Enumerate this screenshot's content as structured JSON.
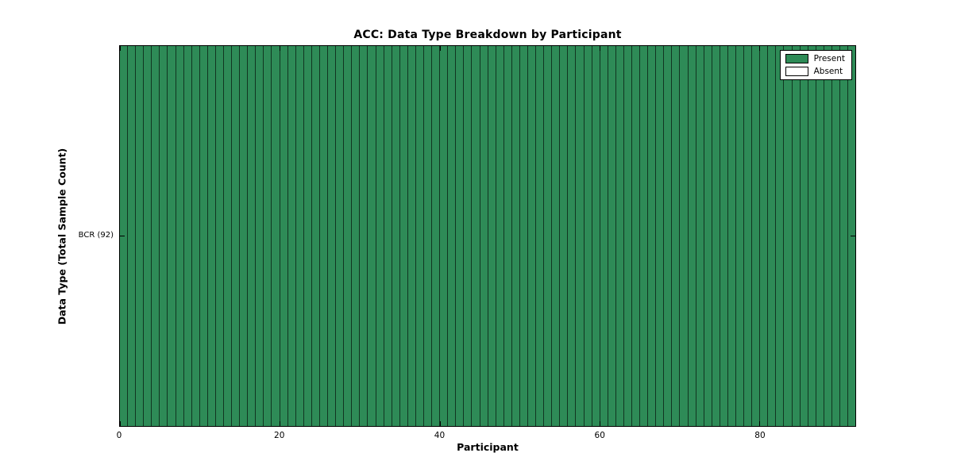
{
  "title": "ACC: Data Type Breakdown by Participant",
  "xlabel": "Participant",
  "ylabel": "Data Type (Total Sample Count)",
  "ytick_label": "BCR (92)",
  "legend": [
    {
      "label": "Present",
      "color": "#2E8B57"
    },
    {
      "label": "Absent",
      "color": "#FFFFFF"
    }
  ],
  "chart_data": {
    "type": "heatmap",
    "title": "ACC: Data Type Breakdown by Participant",
    "xlabel": "Participant",
    "ylabel": "Data Type (Total Sample Count)",
    "rows": [
      "BCR (92)"
    ],
    "n_participants": 92,
    "x_ticks": [
      0,
      20,
      40,
      60,
      80
    ],
    "xlim": [
      0,
      92
    ],
    "grid": false,
    "legend_position": "upper right",
    "present_color": "#2E8B57",
    "absent_color": "#FFFFFF",
    "cell_edge_color": "#000000",
    "series": [
      {
        "name": "BCR (92)",
        "values": [
          1,
          1,
          1,
          1,
          1,
          1,
          1,
          1,
          1,
          1,
          1,
          1,
          1,
          1,
          1,
          1,
          1,
          1,
          1,
          1,
          1,
          1,
          1,
          1,
          1,
          1,
          1,
          1,
          1,
          1,
          1,
          1,
          1,
          1,
          1,
          1,
          1,
          1,
          1,
          1,
          1,
          1,
          1,
          1,
          1,
          1,
          1,
          1,
          1,
          1,
          1,
          1,
          1,
          1,
          1,
          1,
          1,
          1,
          1,
          1,
          1,
          1,
          1,
          1,
          1,
          1,
          1,
          1,
          1,
          1,
          1,
          1,
          1,
          1,
          1,
          1,
          1,
          1,
          1,
          1,
          1,
          1,
          1,
          1,
          1,
          1,
          1,
          1,
          1,
          1,
          1,
          1
        ]
      }
    ]
  }
}
